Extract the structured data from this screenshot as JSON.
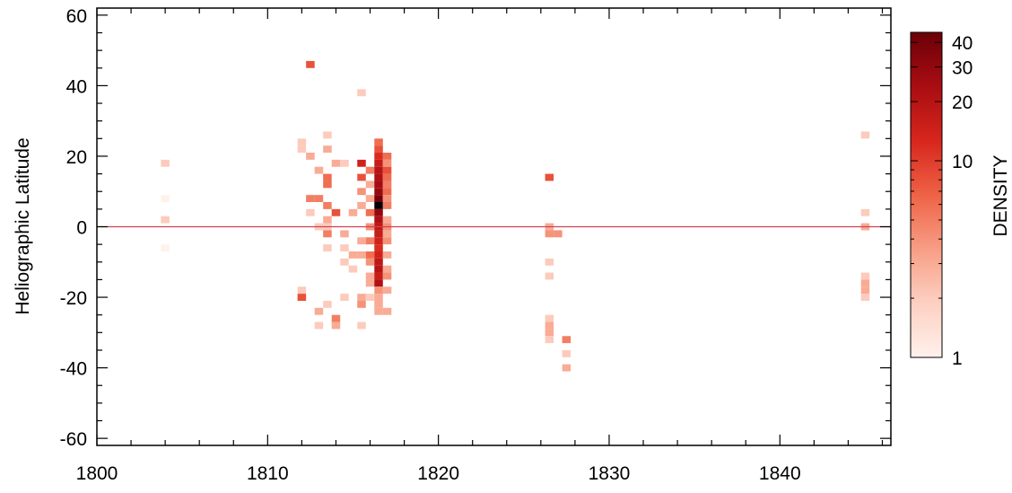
{
  "chart_data": {
    "type": "heatmap",
    "title": "",
    "xlabel": "",
    "ylabel": "Heliographic Latitude",
    "xlim": [
      1800,
      1846.5
    ],
    "ylim": [
      -62,
      62
    ],
    "x_ticks": [
      "1800",
      "1810",
      "1820",
      "1830",
      "1840"
    ],
    "y_ticks": [
      "60",
      "40",
      "20",
      "0",
      "-20",
      "-40",
      "-60"
    ],
    "bin_width_years": 0.5,
    "bin_height_deg": 2,
    "reference_line": {
      "y": 0,
      "color": "#d04050"
    },
    "colorbar": {
      "label": "DENSITY",
      "scale": "log",
      "range": [
        1,
        45
      ],
      "ticks": [
        "1",
        "10",
        "20",
        "30",
        "40"
      ],
      "colors": [
        "#fff1ec",
        "#fdd0c2",
        "#f79e85",
        "#ee6246",
        "#d7261c",
        "#a90d12",
        "#6b0008"
      ]
    },
    "cells": [
      {
        "x": 1804.0,
        "y": 18,
        "v": 2
      },
      {
        "x": 1804.0,
        "y": 8,
        "v": 1
      },
      {
        "x": 1804.0,
        "y": 2,
        "v": 2
      },
      {
        "x": 1804.0,
        "y": -6,
        "v": 1
      },
      {
        "x": 1812.0,
        "y": 24,
        "v": 2
      },
      {
        "x": 1812.0,
        "y": 22,
        "v": 2
      },
      {
        "x": 1812.0,
        "y": -18,
        "v": 2
      },
      {
        "x": 1812.0,
        "y": -20,
        "v": 8
      },
      {
        "x": 1812.5,
        "y": 46,
        "v": 8
      },
      {
        "x": 1812.5,
        "y": 20,
        "v": 3
      },
      {
        "x": 1812.5,
        "y": 8,
        "v": 5
      },
      {
        "x": 1812.5,
        "y": 4,
        "v": 2
      },
      {
        "x": 1813.0,
        "y": 16,
        "v": 3
      },
      {
        "x": 1813.0,
        "y": 8,
        "v": 5
      },
      {
        "x": 1813.0,
        "y": 0,
        "v": 2
      },
      {
        "x": 1813.0,
        "y": -24,
        "v": 3
      },
      {
        "x": 1813.0,
        "y": -28,
        "v": 2
      },
      {
        "x": 1813.5,
        "y": 26,
        "v": 2
      },
      {
        "x": 1813.5,
        "y": 22,
        "v": 3
      },
      {
        "x": 1813.5,
        "y": 14,
        "v": 6
      },
      {
        "x": 1813.5,
        "y": 12,
        "v": 6
      },
      {
        "x": 1813.5,
        "y": 6,
        "v": 5
      },
      {
        "x": 1813.5,
        "y": 2,
        "v": 3
      },
      {
        "x": 1813.5,
        "y": 0,
        "v": 2
      },
      {
        "x": 1813.5,
        "y": -2,
        "v": 5
      },
      {
        "x": 1813.5,
        "y": -6,
        "v": 2
      },
      {
        "x": 1813.5,
        "y": -22,
        "v": 2
      },
      {
        "x": 1814.0,
        "y": 18,
        "v": 3
      },
      {
        "x": 1814.0,
        "y": 4,
        "v": 8
      },
      {
        "x": 1814.0,
        "y": -26,
        "v": 5
      },
      {
        "x": 1814.0,
        "y": -28,
        "v": 3
      },
      {
        "x": 1814.5,
        "y": 18,
        "v": 2
      },
      {
        "x": 1814.5,
        "y": -2,
        "v": 3
      },
      {
        "x": 1814.5,
        "y": -6,
        "v": 2
      },
      {
        "x": 1814.5,
        "y": -10,
        "v": 2
      },
      {
        "x": 1814.5,
        "y": -20,
        "v": 2
      },
      {
        "x": 1815.0,
        "y": 4,
        "v": 3
      },
      {
        "x": 1815.0,
        "y": -8,
        "v": 3
      },
      {
        "x": 1815.0,
        "y": -12,
        "v": 2
      },
      {
        "x": 1815.5,
        "y": 38,
        "v": 2
      },
      {
        "x": 1815.5,
        "y": 18,
        "v": 14
      },
      {
        "x": 1815.5,
        "y": 14,
        "v": 8
      },
      {
        "x": 1815.5,
        "y": 10,
        "v": 4
      },
      {
        "x": 1815.5,
        "y": 6,
        "v": 3
      },
      {
        "x": 1815.5,
        "y": -4,
        "v": 3
      },
      {
        "x": 1815.5,
        "y": -8,
        "v": 3
      },
      {
        "x": 1815.5,
        "y": -20,
        "v": 3
      },
      {
        "x": 1815.5,
        "y": -22,
        "v": 4
      },
      {
        "x": 1815.5,
        "y": -28,
        "v": 2
      },
      {
        "x": 1816.0,
        "y": 16,
        "v": 5
      },
      {
        "x": 1816.0,
        "y": 12,
        "v": 3
      },
      {
        "x": 1816.0,
        "y": 8,
        "v": 3
      },
      {
        "x": 1816.0,
        "y": 4,
        "v": 6
      },
      {
        "x": 1816.0,
        "y": 0,
        "v": 4
      },
      {
        "x": 1816.0,
        "y": -4,
        "v": 5
      },
      {
        "x": 1816.0,
        "y": -8,
        "v": 6
      },
      {
        "x": 1816.0,
        "y": -10,
        "v": 4
      },
      {
        "x": 1816.0,
        "y": -14,
        "v": 3
      },
      {
        "x": 1816.0,
        "y": -16,
        "v": 3
      },
      {
        "x": 1816.0,
        "y": -20,
        "v": 2
      },
      {
        "x": 1816.5,
        "y": 24,
        "v": 6
      },
      {
        "x": 1816.5,
        "y": 22,
        "v": 8
      },
      {
        "x": 1816.5,
        "y": 20,
        "v": 12
      },
      {
        "x": 1816.5,
        "y": 18,
        "v": 16
      },
      {
        "x": 1816.5,
        "y": 16,
        "v": 20
      },
      {
        "x": 1816.5,
        "y": 14,
        "v": 22
      },
      {
        "x": 1816.5,
        "y": 12,
        "v": 25
      },
      {
        "x": 1816.5,
        "y": 10,
        "v": 28
      },
      {
        "x": 1816.5,
        "y": 8,
        "v": 40
      },
      {
        "x": 1816.5,
        "y": 6,
        "v": 45
      },
      {
        "x": 1816.5,
        "y": 4,
        "v": 30
      },
      {
        "x": 1816.5,
        "y": 2,
        "v": 22
      },
      {
        "x": 1816.5,
        "y": 0,
        "v": 18
      },
      {
        "x": 1816.5,
        "y": -2,
        "v": 16
      },
      {
        "x": 1816.5,
        "y": -4,
        "v": 14
      },
      {
        "x": 1816.5,
        "y": -6,
        "v": 12
      },
      {
        "x": 1816.5,
        "y": -8,
        "v": 14
      },
      {
        "x": 1816.5,
        "y": -10,
        "v": 18
      },
      {
        "x": 1816.5,
        "y": -12,
        "v": 20
      },
      {
        "x": 1816.5,
        "y": -14,
        "v": 16
      },
      {
        "x": 1816.5,
        "y": -16,
        "v": 22
      },
      {
        "x": 1816.5,
        "y": -18,
        "v": 4
      },
      {
        "x": 1816.5,
        "y": -20,
        "v": 3
      },
      {
        "x": 1816.5,
        "y": -22,
        "v": 3
      },
      {
        "x": 1816.5,
        "y": -24,
        "v": 3
      },
      {
        "x": 1817.0,
        "y": 20,
        "v": 6
      },
      {
        "x": 1817.0,
        "y": 18,
        "v": 4
      },
      {
        "x": 1817.0,
        "y": 16,
        "v": 8
      },
      {
        "x": 1817.0,
        "y": 14,
        "v": 6
      },
      {
        "x": 1817.0,
        "y": 12,
        "v": 5
      },
      {
        "x": 1817.0,
        "y": 10,
        "v": 6
      },
      {
        "x": 1817.0,
        "y": 8,
        "v": 4
      },
      {
        "x": 1817.0,
        "y": 6,
        "v": 5
      },
      {
        "x": 1817.0,
        "y": 2,
        "v": 3
      },
      {
        "x": 1817.0,
        "y": 0,
        "v": 4
      },
      {
        "x": 1817.0,
        "y": -2,
        "v": 3
      },
      {
        "x": 1817.0,
        "y": -4,
        "v": 4
      },
      {
        "x": 1817.0,
        "y": -8,
        "v": 3
      },
      {
        "x": 1817.0,
        "y": -12,
        "v": 3
      },
      {
        "x": 1817.0,
        "y": -14,
        "v": 4
      },
      {
        "x": 1817.0,
        "y": -18,
        "v": 3
      },
      {
        "x": 1817.0,
        "y": -24,
        "v": 3
      },
      {
        "x": 1826.5,
        "y": 14,
        "v": 8
      },
      {
        "x": 1826.5,
        "y": 0,
        "v": 3
      },
      {
        "x": 1826.5,
        "y": -2,
        "v": 4
      },
      {
        "x": 1826.5,
        "y": -10,
        "v": 2
      },
      {
        "x": 1826.5,
        "y": -14,
        "v": 2
      },
      {
        "x": 1826.5,
        "y": -26,
        "v": 2
      },
      {
        "x": 1826.5,
        "y": -28,
        "v": 3
      },
      {
        "x": 1826.5,
        "y": -30,
        "v": 3
      },
      {
        "x": 1826.5,
        "y": -32,
        "v": 2
      },
      {
        "x": 1827.0,
        "y": -2,
        "v": 4
      },
      {
        "x": 1827.5,
        "y": -32,
        "v": 5
      },
      {
        "x": 1827.5,
        "y": -36,
        "v": 2
      },
      {
        "x": 1827.5,
        "y": -40,
        "v": 3
      },
      {
        "x": 1845.0,
        "y": 26,
        "v": 2
      },
      {
        "x": 1845.0,
        "y": 4,
        "v": 2
      },
      {
        "x": 1845.0,
        "y": 0,
        "v": 3
      },
      {
        "x": 1845.0,
        "y": -14,
        "v": 2
      },
      {
        "x": 1845.0,
        "y": -16,
        "v": 3
      },
      {
        "x": 1845.0,
        "y": -18,
        "v": 3
      },
      {
        "x": 1845.0,
        "y": -20,
        "v": 2
      }
    ]
  }
}
